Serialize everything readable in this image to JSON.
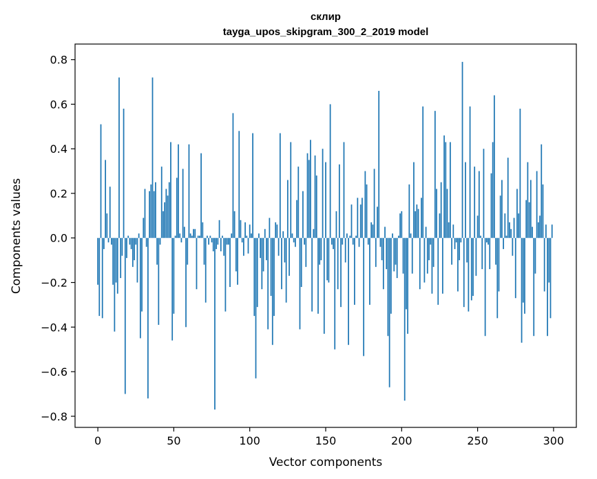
{
  "chart_data": {
    "type": "bar",
    "title": "склир",
    "subtitle": "tayga_upos_skipgram_300_2_2019 model",
    "xlabel": "Vector components",
    "ylabel": "Components values",
    "xlim": [
      -15,
      315
    ],
    "ylim": [
      -0.85,
      0.87
    ],
    "xticks": [
      0,
      50,
      100,
      150,
      200,
      250,
      300
    ],
    "yticks": [
      -0.8,
      -0.6,
      -0.4,
      -0.2,
      0.0,
      0.2,
      0.4,
      0.6,
      0.8
    ],
    "ytick_labels": [
      "−0.8",
      "−0.6",
      "−0.4",
      "−0.2",
      "0.0",
      "0.2",
      "0.4",
      "0.6",
      "0.8"
    ],
    "bar_color": "#1f77b4",
    "values": [
      -0.21,
      -0.35,
      0.51,
      -0.36,
      -0.05,
      0.35,
      0.11,
      -0.02,
      0.23,
      -0.03,
      -0.21,
      -0.42,
      -0.2,
      -0.25,
      0.72,
      -0.18,
      -0.08,
      0.58,
      -0.7,
      -0.09,
      0.01,
      -0.03,
      -0.05,
      -0.13,
      -0.1,
      -0.03,
      -0.2,
      0.02,
      -0.45,
      -0.33,
      0.09,
      0.22,
      -0.04,
      -0.72,
      0.21,
      0.24,
      0.72,
      0.21,
      0.25,
      -0.12,
      -0.39,
      -0.03,
      0.32,
      0.12,
      0.16,
      0.22,
      0.19,
      0.25,
      0.43,
      -0.46,
      -0.34,
      0.01,
      0.27,
      0.42,
      0.02,
      -0.02,
      0.31,
      0.05,
      -0.4,
      -0.12,
      0.42,
      0.02,
      0.01,
      0.04,
      0.04,
      -0.23,
      0.01,
      0.01,
      0.38,
      0.07,
      -0.12,
      -0.29,
      0.01,
      -0.03,
      0.01,
      -0.02,
      -0.06,
      -0.77,
      -0.05,
      -0.03,
      0.08,
      -0.06,
      0.01,
      -0.08,
      -0.33,
      -0.03,
      -0.03,
      -0.22,
      0.02,
      0.56,
      0.12,
      -0.15,
      -0.21,
      0.48,
      0.08,
      -0.02,
      -0.08,
      0.07,
      0.01,
      -0.07,
      0.06,
      0.02,
      0.47,
      -0.35,
      -0.63,
      -0.31,
      0.02,
      -0.09,
      -0.23,
      -0.15,
      0.04,
      -0.1,
      -0.41,
      0.09,
      -0.26,
      -0.48,
      -0.35,
      0.07,
      0.06,
      -0.08,
      0.47,
      -0.23,
      0.03,
      -0.11,
      -0.29,
      0.26,
      -0.17,
      0.43,
      0.02,
      -0.02,
      -0.04,
      0.17,
      0.32,
      -0.41,
      -0.22,
      0.21,
      -0.03,
      -0.13,
      0.38,
      0.35,
      0.44,
      -0.33,
      0.04,
      0.37,
      0.28,
      -0.34,
      -0.12,
      -0.1,
      0.4,
      -0.43,
      0.34,
      -0.19,
      -0.2,
      0.6,
      -0.03,
      -0.05,
      -0.5,
      0.12,
      -0.23,
      0.33,
      -0.31,
      -0.03,
      0.43,
      -0.11,
      0.02,
      -0.48,
      0.01,
      0.15,
      -0.03,
      -0.3,
      0.01,
      0.18,
      -0.04,
      0.15,
      0.18,
      -0.53,
      0.3,
      0.24,
      -0.03,
      -0.3,
      0.07,
      0.06,
      0.31,
      -0.13,
      0.14,
      0.66,
      -0.04,
      -0.1,
      -0.23,
      0.05,
      -0.14,
      -0.44,
      -0.67,
      -0.34,
      0.02,
      -0.15,
      -0.12,
      -0.18,
      0.01,
      0.11,
      0.12,
      -0.16,
      -0.73,
      -0.32,
      -0.43,
      0.24,
      0.02,
      -0.16,
      0.34,
      0.12,
      0.15,
      0.13,
      -0.23,
      0.18,
      0.59,
      -0.2,
      0.05,
      -0.16,
      -0.1,
      -0.03,
      -0.25,
      -0.13,
      0.57,
      0.22,
      -0.3,
      0.11,
      0.25,
      -0.25,
      0.46,
      0.43,
      0.22,
      0.07,
      0.43,
      -0.12,
      0.06,
      -0.05,
      -0.02,
      -0.24,
      -0.1,
      -0.02,
      0.79,
      -0.31,
      0.34,
      -0.11,
      -0.33,
      0.59,
      -0.28,
      -0.26,
      0.32,
      -0.17,
      0.1,
      0.3,
      0.01,
      -0.14,
      0.4,
      -0.44,
      -0.02,
      -0.03,
      -0.14,
      0.29,
      0.43,
      0.64,
      -0.12,
      -0.36,
      -0.24,
      0.19,
      0.26,
      -0.05,
      0.11,
      0.01,
      0.36,
      0.07,
      0.04,
      -0.08,
      0.09,
      -0.27,
      0.22,
      0.11,
      0.58,
      -0.47,
      -0.29,
      -0.34,
      0.17,
      0.34,
      0.16,
      0.26,
      0.05,
      -0.44,
      -0.16,
      0.3,
      0.07,
      0.1,
      0.42,
      0.24,
      -0.24,
      0.06,
      -0.44,
      -0.2,
      -0.36,
      0.06
    ]
  }
}
